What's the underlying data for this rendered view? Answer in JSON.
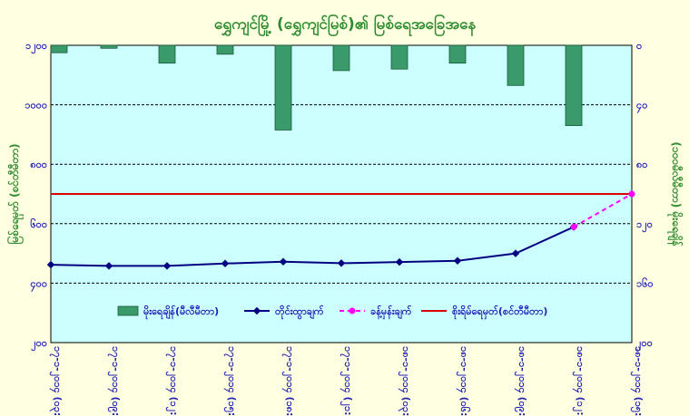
{
  "chart_data": {
    "type": "bar+line",
    "title": "ရွှေကျင်မြို့ (ရွှေကျင်မြစ်)၏ မြစ်ရေအခြေအနေ",
    "ylabel_left": "မြစ်ရေမှတ် (စင်တီမီတာ)",
    "ylabel_right": "(၁၀၀မီလီမီတာ) မိုးရေချိန်",
    "categories": [
      "၁၇-၁-၂၀၁၄ (၀၃:၃၀)",
      "၁၇-၁-၂၀၁၄ (၀၉:၃၀)",
      "၁၇-၁-၂၀၁၄ (၁၂:၃၀)",
      "၁၇-၁-၂၀၁၄ (၁၅:၃၀)",
      "၁၇-၁-၂၀၁၄ (၁၈:၃၀)",
      "၁၇-၁-၂၀၁၄ (၂၁:၃၀)",
      "၁၈-၁-၂၀၁၄ (၀၃:၃၀)",
      "၁၈-၁-၂၀၁၄ (၀၆:၃၀)",
      "၁၈-၁-၂၀၁၄ (၀၉:၃၀)",
      "၁၈-၁-၂၀၁၄ (၁၂:၃၀)",
      "၁၈-၁-၂၀၁၄ (၁၅:၃၀)"
    ],
    "y_left": {
      "min": 200,
      "max": 1200,
      "step": 200,
      "tick_labels": [
        "၂၀၀",
        "၄၀၀",
        "၆၀၀",
        "၈၀၀",
        "၁၀၀၀",
        "၁၂၀၀"
      ]
    },
    "y_right": {
      "min": 0,
      "max": 200,
      "step": 40,
      "reversed": true,
      "tick_labels": [
        "၀",
        "၄၀",
        "၈၀",
        "၁၂၀",
        "၁၆၀",
        "၂၀၀"
      ]
    },
    "series": [
      {
        "name": "မိုးရေချိန်(မီလီမီတာ)",
        "type": "bar",
        "axis": "right",
        "color": "#3a9a6a",
        "values": [
          5,
          2,
          12,
          6,
          57,
          17,
          16,
          12,
          27,
          54,
          null
        ]
      },
      {
        "name": "တိုင်းထွာချက်",
        "type": "line",
        "axis": "left",
        "color": "#000080",
        "values": [
          462,
          458,
          458,
          466,
          472,
          467,
          471,
          475,
          500,
          589,
          null
        ]
      },
      {
        "name": "ခန့်မှန်းချက်",
        "type": "line-dashed",
        "axis": "left",
        "color": "#ff00ff",
        "values": [
          null,
          null,
          null,
          null,
          null,
          null,
          null,
          null,
          null,
          589,
          700
        ]
      },
      {
        "name": "စိုးရိမ်ရေမှတ်(စင်တီမီတာ)",
        "type": "hline",
        "axis": "left",
        "color": "#dd0000",
        "value": 700
      }
    ],
    "grid": true,
    "legend_position": "bottom-inside"
  }
}
